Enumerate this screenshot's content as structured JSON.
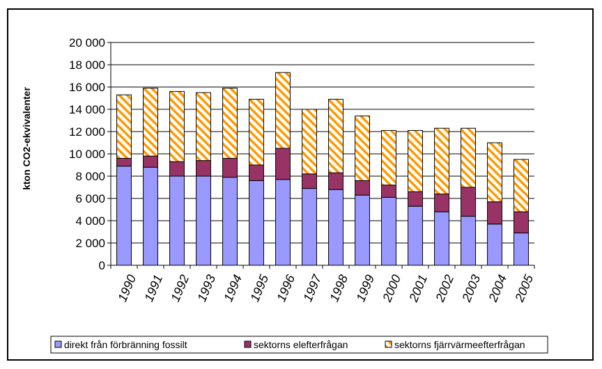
{
  "chart_data": {
    "type": "bar",
    "stacked": true,
    "title": "",
    "xlabel": "",
    "ylabel": "kton CO2-ekvivalenter",
    "ylim": [
      0,
      20000
    ],
    "ytick_step": 2000,
    "ytick_labels": [
      "0",
      "2 000",
      "4 000",
      "6 000",
      "8 000",
      "10 000",
      "12 000",
      "14 000",
      "16 000",
      "18 000",
      "20 000"
    ],
    "grid": "horizontal",
    "legend_position": "bottom",
    "categories": [
      "1990",
      "1991",
      "1992",
      "1993",
      "1994",
      "1995",
      "1996",
      "1997",
      "1998",
      "1999",
      "2000",
      "2001",
      "2002",
      "2003",
      "2004",
      "2005"
    ],
    "series": [
      {
        "name": "direkt från förbränning fossilt",
        "color": "#9999ff",
        "pattern": "solid",
        "values": [
          8900,
          8800,
          8000,
          8000,
          7900,
          7600,
          7700,
          6900,
          6800,
          6300,
          6100,
          5300,
          4800,
          4400,
          3700,
          2900
        ]
      },
      {
        "name": "sektorns elefterfrågan",
        "color": "#993366",
        "pattern": "solid",
        "values": [
          700,
          1000,
          1300,
          1400,
          1700,
          1400,
          2800,
          1300,
          1500,
          1300,
          1100,
          1300,
          1600,
          2600,
          2000,
          1900
        ]
      },
      {
        "name": "sektorns fjärrvärmeefterfrågan",
        "color": "#ff9900",
        "pattern": "hatched",
        "values": [
          5700,
          6100,
          6300,
          6100,
          6300,
          5900,
          6800,
          5800,
          6600,
          5800,
          4900,
          5500,
          5900,
          5300,
          5300,
          4700
        ]
      }
    ]
  }
}
